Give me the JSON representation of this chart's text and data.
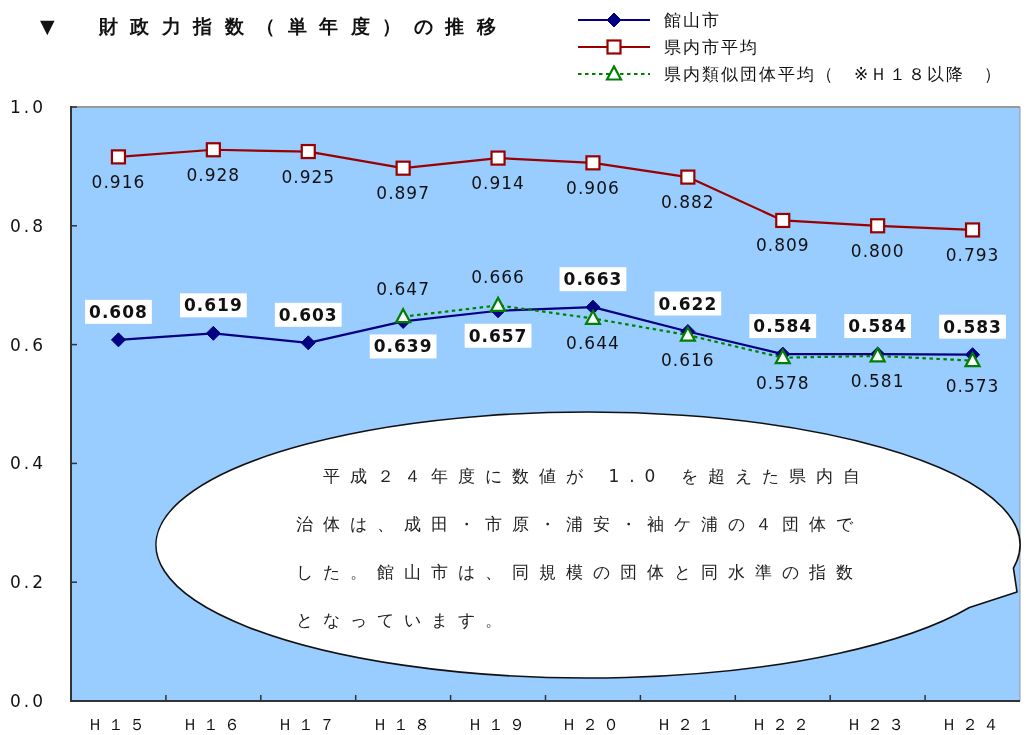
{
  "chart_data": {
    "type": "line",
    "title": "▼　財政力指数（単年度）の推移",
    "categories": [
      "Ｈ１５",
      "Ｈ１６",
      "Ｈ１７",
      "Ｈ１８",
      "Ｈ１９",
      "Ｈ２０",
      "Ｈ２１",
      "Ｈ２２",
      "Ｈ２３",
      "Ｈ２４"
    ],
    "ylim": [
      0,
      1
    ],
    "yticks": [
      {
        "value": 0,
        "label": "0.0"
      },
      {
        "value": 0.2,
        "label": "0.2"
      },
      {
        "value": 0.4,
        "label": "0.4"
      },
      {
        "value": 0.6,
        "label": "0.6"
      },
      {
        "value": 0.8,
        "label": "0.8"
      },
      {
        "value": 1,
        "label": "1.0"
      }
    ],
    "grid": false,
    "legend": "top right",
    "series": [
      {
        "name": "館山市",
        "color": "#000080",
        "marker": "diamond",
        "line_style": "solid",
        "values": [
          0.608,
          0.619,
          0.603,
          0.639,
          0.657,
          0.663,
          0.622,
          0.584,
          0.584,
          0.583
        ],
        "value_labels": [
          "0.608",
          "0.619",
          "0.603",
          "0.639",
          "0.657",
          "0.663",
          "0.622",
          "0.584",
          "0.584",
          "0.583"
        ]
      },
      {
        "name": "県内市平均",
        "color": "#990000",
        "marker": "square",
        "line_style": "solid",
        "values": [
          0.916,
          0.928,
          0.925,
          0.897,
          0.914,
          0.906,
          0.882,
          0.809,
          0.8,
          0.793
        ],
        "value_labels": [
          "0.916",
          "0.928",
          "0.925",
          "0.897",
          "0.914",
          "0.906",
          "0.882",
          "0.809",
          "0.800",
          "0.793"
        ]
      },
      {
        "name": "県内類似団体平均（　※Ｈ１８以降　）",
        "color": "#008000",
        "marker": "triangle",
        "line_style": "dotted",
        "values": [
          null,
          null,
          null,
          0.647,
          0.666,
          0.644,
          0.616,
          0.578,
          0.581,
          0.573
        ],
        "value_labels": [
          null,
          null,
          null,
          "0.647",
          "0.666",
          "0.644",
          "0.616",
          "0.578",
          "0.581",
          "0.573"
        ]
      }
    ],
    "annotations": [
      "　平成２４年度に数値が 1.0 を超えた県内自治体は、成田・市原・浦安・袖ケ浦の４団体でした。館山市は、同規模の団体と同水準の指数となっています。"
    ]
  }
}
